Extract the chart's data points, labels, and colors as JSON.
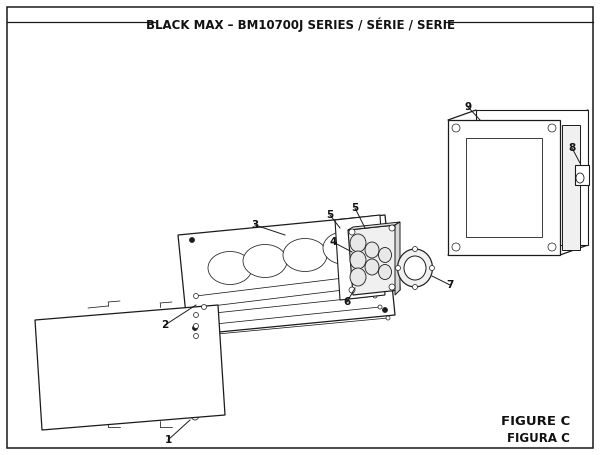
{
  "title": "BLACK MAX – BM10700J SERIES / SÉRIE / SERIE",
  "figure_label": "FIGURE C",
  "figura_label": "FIGURA C",
  "bg_color": "#ffffff",
  "line_color": "#1a1a1a",
  "lw_main": 0.9,
  "lw_thin": 0.55,
  "title_fontsize": 8.5,
  "label_fontsize": 7.5,
  "figure_label_fontsize": 9.5
}
